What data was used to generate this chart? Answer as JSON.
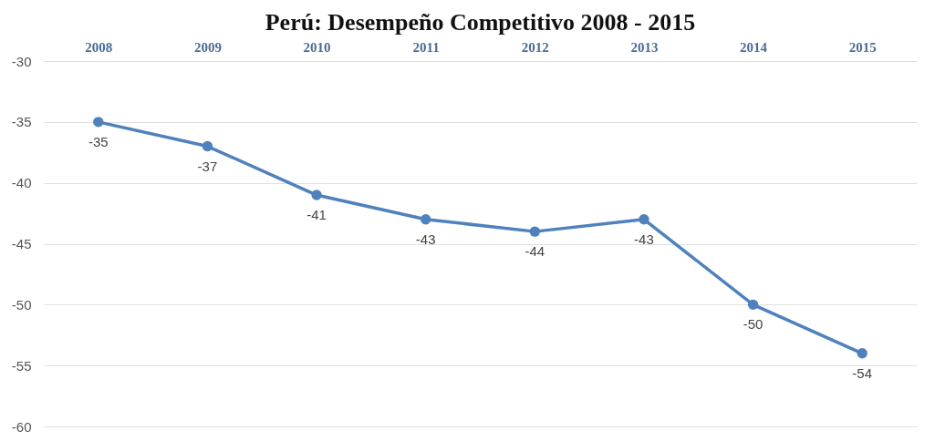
{
  "chart_data": {
    "type": "line",
    "title": "Perú: Desempeño Competitivo 2008 - 2015",
    "categories": [
      "2008",
      "2009",
      "2010",
      "2011",
      "2012",
      "2013",
      "2014",
      "2015"
    ],
    "series": [
      {
        "color": "#4f81bd",
        "values": [
          -35,
          -37,
          -41,
          -43,
          -44,
          -43,
          -50,
          -54
        ]
      }
    ],
    "ylim": [
      -60,
      -30
    ],
    "yticks": [
      -30,
      -35,
      -40,
      -45,
      -50,
      -55,
      -60
    ],
    "grid": "y",
    "marker": "circle",
    "line_style": "solid",
    "data_labels": true
  }
}
